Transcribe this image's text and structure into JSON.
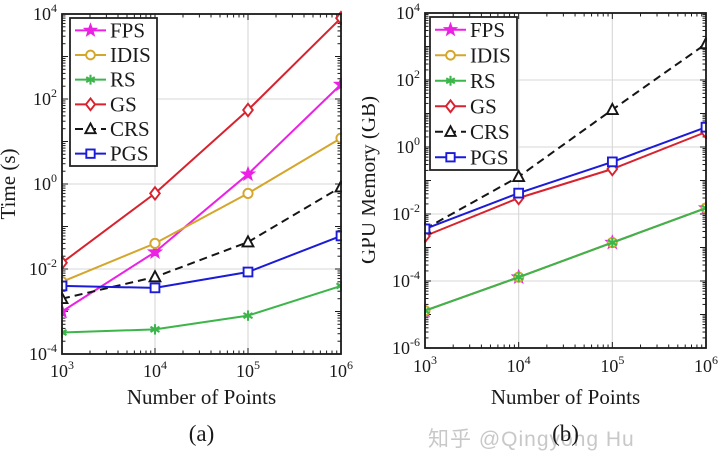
{
  "watermark": {
    "text": "知乎 @Qingyong Hu",
    "color": "#c8c8c8"
  },
  "figure": {
    "background": "#ffffff",
    "grid_color": "#d7d7d7",
    "axis_color": "#1a1a1a",
    "text_color": "#1a1a1a"
  },
  "chart_data": [
    {
      "id": "a",
      "type": "line",
      "caption": "(a)",
      "xlabel": "Number of Points",
      "ylabel": "Time (s)",
      "x_scale": "log",
      "y_scale": "log",
      "grid": true,
      "legend_position": "top-left",
      "x": [
        1000,
        10000,
        100000,
        1000000
      ],
      "x_tick_labels": [
        "10^3",
        "10^4",
        "10^5",
        "10^6"
      ],
      "x_exp_range": [
        3,
        6
      ],
      "y_exp_range": [
        -4,
        4
      ],
      "y_tick_exps": [
        4,
        2,
        0,
        -2,
        -4
      ],
      "x_tick_exps": [
        3,
        4,
        5,
        6
      ],
      "series": [
        {
          "name": "FPS",
          "color": "#EB21E4",
          "marker": "pentagram",
          "line": "solid",
          "values": [
            0.001,
            0.025,
            1.7,
            220
          ]
        },
        {
          "name": "IDIS",
          "color": "#D5A62C",
          "marker": "circle",
          "line": "solid",
          "values": [
            0.005,
            0.04,
            0.6,
            12
          ]
        },
        {
          "name": "RS",
          "color": "#3CB54A",
          "marker": "asterisk",
          "line": "solid",
          "values": [
            0.00032,
            0.00038,
            0.0008,
            0.004
          ]
        },
        {
          "name": "GS",
          "color": "#D8222E",
          "marker": "diamond",
          "line": "solid",
          "values": [
            0.014,
            0.6,
            55,
            8000
          ]
        },
        {
          "name": "CRS",
          "color": "#151515",
          "marker": "triangle",
          "line": "dashed",
          "values": [
            0.002,
            0.0065,
            0.043,
            0.85
          ]
        },
        {
          "name": "PGS",
          "color": "#1B1BD8",
          "marker": "square",
          "line": "solid",
          "values": [
            0.004,
            0.0036,
            0.0085,
            0.06
          ]
        }
      ]
    },
    {
      "id": "b",
      "type": "line",
      "caption": "(b)",
      "xlabel": "Number of Points",
      "ylabel": "GPU Memory (GB)",
      "x_scale": "log",
      "y_scale": "log",
      "grid": true,
      "legend_position": "top-left",
      "note": "FPS, IDIS and RS curves overlap exactly in this panel",
      "x": [
        1000,
        10000,
        100000,
        1000000
      ],
      "x_tick_labels": [
        "10^3",
        "10^4",
        "10^5",
        "10^6"
      ],
      "x_exp_range": [
        3,
        6
      ],
      "y_exp_range": [
        -6,
        4
      ],
      "y_tick_exps": [
        4,
        2,
        0,
        -2,
        -4,
        -6
      ],
      "x_tick_exps": [
        3,
        4,
        5,
        6
      ],
      "series": [
        {
          "name": "FPS",
          "color": "#EB21E4",
          "marker": "pentagram",
          "line": "solid",
          "values": [
            1.3e-05,
            0.00013,
            0.0014,
            0.015
          ]
        },
        {
          "name": "IDIS",
          "color": "#D5A62C",
          "marker": "circle",
          "line": "solid",
          "values": [
            1.3e-05,
            0.00013,
            0.0014,
            0.015
          ]
        },
        {
          "name": "RS",
          "color": "#3CB54A",
          "marker": "asterisk",
          "line": "solid",
          "values": [
            1.3e-05,
            0.00013,
            0.0014,
            0.015
          ]
        },
        {
          "name": "GS",
          "color": "#D8222E",
          "marker": "diamond",
          "line": "solid",
          "values": [
            0.0022,
            0.03,
            0.22,
            2.8
          ]
        },
        {
          "name": "CRS",
          "color": "#151515",
          "marker": "triangle",
          "line": "dashed",
          "values": [
            0.0036,
            0.13,
            13,
            1200
          ]
        },
        {
          "name": "PGS",
          "color": "#1B1BD8",
          "marker": "square",
          "line": "solid",
          "values": [
            0.0036,
            0.042,
            0.36,
            3.9
          ]
        }
      ]
    }
  ]
}
